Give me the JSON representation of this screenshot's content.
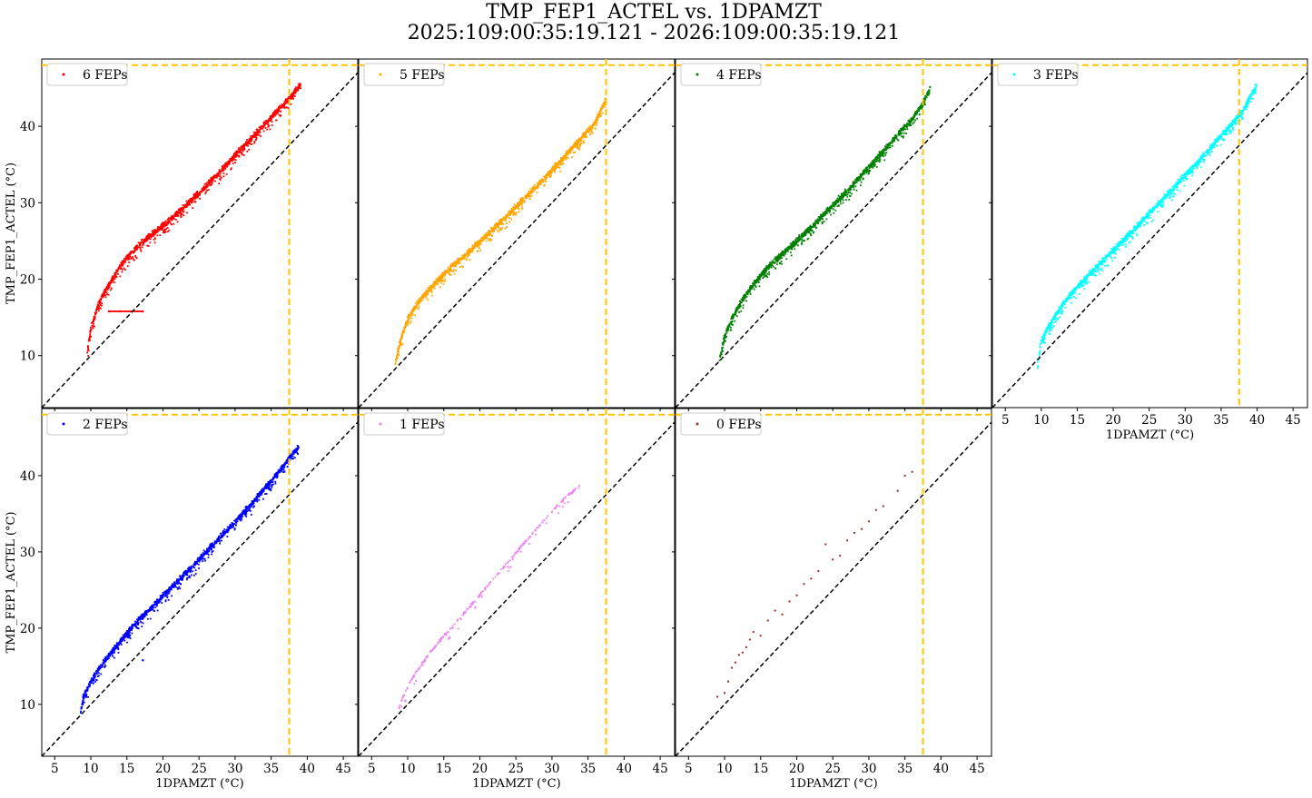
{
  "title": [
    "TMP_FEP1_ACTEL vs. 1DPAMZT",
    "2025:109:00:35:19.121 - 2026:109:00:35:19.121"
  ],
  "chart_data": {
    "type": "scatter",
    "title": "TMP_FEP1_ACTEL vs. 1DPAMZT\n2025:109:00:35:19.121 - 2026:109:00:35:19.121",
    "xlabel": "1DPAMZT (°C)",
    "ylabel": "TMP_FEP1_ACTEL (°C)",
    "xlim": [
      3.2,
      47
    ],
    "ylim": [
      3.2,
      48.8
    ],
    "x_ticks": [
      5,
      10,
      15,
      20,
      25,
      30,
      35,
      40,
      45
    ],
    "y_ticks": [
      10,
      20,
      30,
      40
    ],
    "reference_lines": {
      "diagonal": "y = x",
      "vertical_limit_x": 37.5,
      "horizontal_limit_y": 48.0,
      "limit_color": "#ffc300",
      "diagonal_color": "#000000"
    },
    "legend_placement": "top-left",
    "series": [
      {
        "name": "6 FEPs",
        "color": "#ff0000",
        "x": [
          9.5,
          10,
          11,
          12,
          13,
          14,
          15,
          16,
          17,
          18,
          19,
          20,
          22,
          24,
          26,
          28,
          30,
          32,
          34,
          36,
          37.5,
          39.2
        ],
        "y": [
          10.5,
          13.5,
          16.5,
          18.5,
          20,
          21.5,
          22.8,
          23.8,
          24.7,
          25.5,
          26.3,
          27,
          28.6,
          30.4,
          32.2,
          34.2,
          36.2,
          38.2,
          40.2,
          42.2,
          43.6,
          45.5
        ],
        "extra_points": [
          [
            12.5,
            15.8
          ],
          [
            14,
            15.8
          ],
          [
            15.5,
            15.8
          ],
          [
            17.2,
            15.8
          ]
        ]
      },
      {
        "name": "5 FEPs",
        "color": "#ffa500",
        "x": [
          8.3,
          9,
          10,
          11,
          12,
          13,
          14,
          15,
          16,
          18,
          20,
          22,
          24,
          26,
          28,
          30,
          32,
          34,
          36,
          37.5
        ],
        "y": [
          9.0,
          12,
          14.8,
          16.3,
          17.6,
          18.7,
          19.7,
          20.6,
          21.5,
          23.2,
          24.9,
          26.7,
          28.5,
          30.4,
          32.3,
          34.3,
          36.3,
          38.4,
          40.5,
          43.5
        ]
      },
      {
        "name": "4 FEPs",
        "color": "#008000",
        "x": [
          9.3,
          10,
          11,
          12,
          13,
          14,
          15,
          16,
          18,
          20,
          22,
          24,
          26,
          28,
          30,
          32,
          34,
          36,
          37.5,
          38.5
        ],
        "y": [
          9.5,
          12.5,
          14.8,
          16.5,
          18,
          19.3,
          20.5,
          21.5,
          23.3,
          25,
          26.8,
          28.7,
          30.6,
          32.6,
          34.7,
          36.8,
          38.9,
          41,
          43,
          45
        ]
      },
      {
        "name": "3 FEPs",
        "color": "#00ffff",
        "x": [
          9.5,
          10,
          11,
          12,
          13,
          14,
          15,
          16,
          18,
          20,
          22,
          24,
          26,
          28,
          30,
          32,
          34,
          36,
          38,
          39.9
        ],
        "y": [
          8.5,
          12,
          13.8,
          15.3,
          16.7,
          17.9,
          19,
          20,
          21.9,
          23.8,
          25.7,
          27.6,
          29.6,
          31.6,
          33.6,
          35.6,
          37.7,
          39.8,
          42,
          45.3
        ]
      },
      {
        "name": "2 FEPs",
        "color": "#0000ff",
        "x": [
          8.6,
          9,
          10,
          11,
          12,
          13,
          14,
          15,
          16,
          18,
          20,
          22,
          24,
          26,
          28,
          30,
          32,
          34,
          36,
          37.5,
          38.8
        ],
        "y": [
          9.0,
          11,
          13,
          14.5,
          15.8,
          17,
          18.2,
          19.3,
          20.4,
          22.3,
          24.2,
          26.1,
          28,
          30,
          32,
          34,
          36,
          38.2,
          40.4,
          42.3,
          43.7
        ],
        "extra_points": [
          [
            17.2,
            15.8
          ]
        ]
      },
      {
        "name": "1 FEPs",
        "color": "#ee82ee",
        "x": [
          8.3,
          9,
          10,
          11,
          12,
          13,
          14,
          15,
          16,
          18,
          20,
          22,
          24,
          26,
          28,
          30,
          32,
          33.8
        ],
        "y": [
          8.5,
          10.2,
          12.3,
          14,
          15.3,
          16.7,
          17.8,
          19,
          20,
          22.2,
          24.4,
          26.6,
          28.8,
          31,
          33.2,
          35.3,
          37.3,
          38.6
        ]
      },
      {
        "name": "0 FEPs",
        "color": "#a52a2a",
        "x": [
          9,
          10,
          10.5,
          11,
          11.5,
          12,
          12.5,
          13,
          13.5,
          14,
          15,
          16,
          17,
          18,
          19,
          20,
          21,
          22,
          23,
          24,
          25,
          26,
          27,
          28,
          29,
          30,
          31,
          32,
          34,
          35,
          36
        ],
        "y": [
          11,
          11.5,
          13,
          14.8,
          15.5,
          16.5,
          16.8,
          17.5,
          18.5,
          19.5,
          19,
          21,
          22.3,
          21.8,
          23.5,
          24.3,
          25.8,
          26.5,
          27.5,
          31,
          29,
          29.5,
          31.5,
          32.5,
          33,
          34,
          35.5,
          36,
          38,
          40,
          40.5
        ]
      }
    ]
  }
}
